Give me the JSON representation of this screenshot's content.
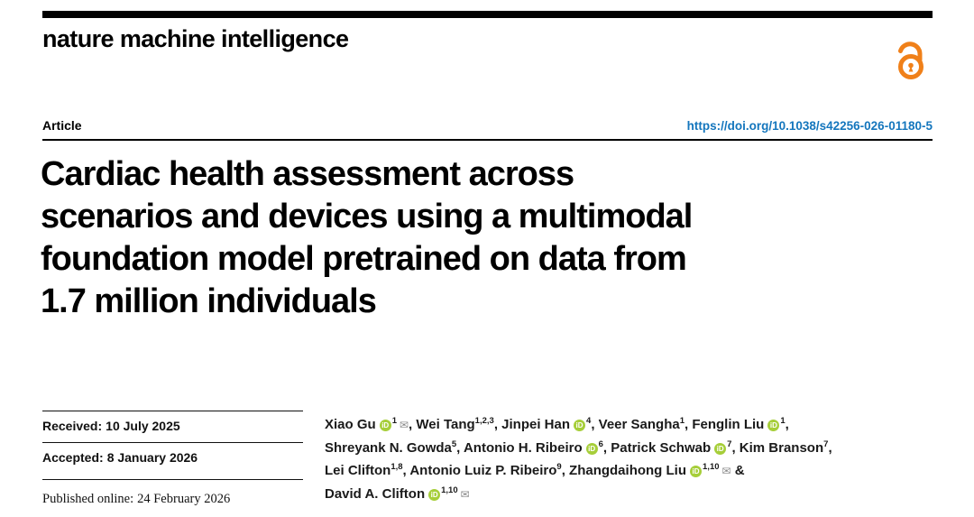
{
  "colors": {
    "accent_orange": "#F08019",
    "link_blue": "#1476BD",
    "orcid_green": "#A6CE39"
  },
  "masthead": {
    "journal_name": "nature machine intelligence",
    "open_access_icon": "open-access-lock-icon"
  },
  "article_header": {
    "type_label": "Article",
    "doi": "https://doi.org/10.1038/s42256-026-01180-5"
  },
  "title_lines": [
    "Cardiac health assessment across",
    "scenarios and devices using a multimodal",
    "foundation model pretrained on data from",
    "1.7 million individuals"
  ],
  "dates": [
    {
      "label": "Received:",
      "value": "10 July 2025"
    },
    {
      "label": "Accepted:",
      "value": "8 January 2026"
    },
    {
      "label": "Published online:",
      "value": "24 February 2026"
    }
  ],
  "authors": [
    {
      "name": "Xiao Gu",
      "orcid": true,
      "sup": "1",
      "email": true,
      "sep": ", ",
      "line_break": false
    },
    {
      "name": "Wei Tang",
      "orcid": false,
      "sup": "1,2,3",
      "email": false,
      "sep": ", ",
      "line_break": false
    },
    {
      "name": "Jinpei Han",
      "orcid": true,
      "sup": "4",
      "email": false,
      "sep": ", ",
      "line_break": false
    },
    {
      "name": "Veer Sangha",
      "orcid": false,
      "sup": "1",
      "email": false,
      "sep": ", ",
      "line_break": false
    },
    {
      "name": "Fenglin Liu",
      "orcid": true,
      "sup": "1",
      "email": false,
      "sep": ",",
      "line_break": true
    },
    {
      "name": "Shreyank N. Gowda",
      "orcid": false,
      "sup": "5",
      "email": false,
      "sep": ", ",
      "line_break": false
    },
    {
      "name": "Antonio H. Ribeiro",
      "orcid": true,
      "sup": "6",
      "email": false,
      "sep": ", ",
      "line_break": false
    },
    {
      "name": "Patrick Schwab",
      "orcid": true,
      "sup": "7",
      "email": false,
      "sep": ", ",
      "line_break": false
    },
    {
      "name": "Kim Branson",
      "orcid": false,
      "sup": "7",
      "email": false,
      "sep": ",",
      "line_break": true
    },
    {
      "name": "Lei Clifton",
      "orcid": false,
      "sup": "1,8",
      "email": false,
      "sep": ", ",
      "line_break": false
    },
    {
      "name": "Antonio Luiz P. Ribeiro",
      "orcid": false,
      "sup": "9",
      "email": false,
      "sep": ", ",
      "line_break": false
    },
    {
      "name": "Zhangdaihong Liu",
      "orcid": true,
      "sup": "1,10",
      "email": true,
      "sep": " &",
      "line_break": true
    },
    {
      "name": "David A. Clifton",
      "orcid": true,
      "sup": "1,10",
      "email": true,
      "sep": "",
      "line_break": false
    }
  ]
}
